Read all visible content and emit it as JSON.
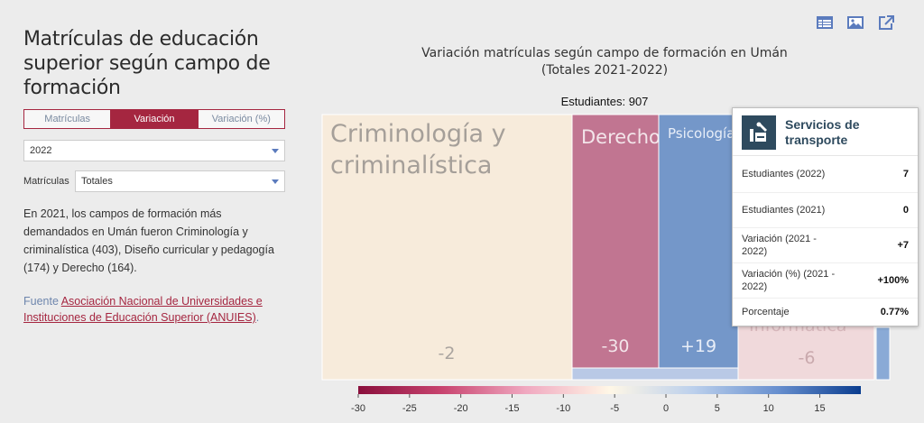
{
  "left": {
    "title": "Matrículas de educación superior según campo de formación",
    "tabs": [
      "Matrículas",
      "Variación",
      "Variación (%)"
    ],
    "active_tab": 1,
    "year_select": "2022",
    "matriculas_label": "Matrículas",
    "matriculas_select": "Totales",
    "description": "En 2021, los campos de formación más demandados en Umán fueron Criminología y criminalística (403), Diseño curricular y pedagogía (174) y Derecho (164).",
    "source_label": "Fuente",
    "source_link": "Asociación Nacional de Universidades e Instituciones de Educación Superior (ANUIES)",
    "source_end": "."
  },
  "toolbar_icons": [
    "table-icon",
    "image-icon",
    "external-link-icon"
  ],
  "chart_data": {
    "type": "treemap",
    "title_line1": "Variación matrículas según campo de formación en Umán",
    "title_line2": "(Totales 2021-2022)",
    "total_label": "Estudiantes: 907",
    "nodes": [
      {
        "name": "Criminología y criminalística",
        "value_label": "-2",
        "variation": -2,
        "color": "#f7ebdb"
      },
      {
        "name": "Derecho",
        "value_label": "-30",
        "variation": -30,
        "color": "#c17591"
      },
      {
        "name": "Psicología",
        "value_label": "+19",
        "variation": 19,
        "color": "#7497c9"
      },
      {
        "name": "Informática",
        "value_label": "-6",
        "variation": -6,
        "color": "#f0d9db"
      },
      {
        "name": "",
        "value_label": "",
        "variation": 8,
        "color": "#b9c9e6"
      },
      {
        "name": "Servicios de transporte",
        "value_label": "",
        "variation": 7,
        "color": "#8aaad6"
      }
    ],
    "colorscale": {
      "min": -30,
      "max": 19,
      "ticks": [
        -30,
        -25,
        -20,
        -15,
        -10,
        -5,
        0,
        5,
        10,
        15
      ],
      "colors": [
        "#8a0f3c",
        "#c8446f",
        "#f0a8c0",
        "#fff7e6",
        "#bcd0ec",
        "#6890cf",
        "#0a3d8f"
      ]
    },
    "tooltip": {
      "title": "Servicios de transporte",
      "rows": [
        {
          "label": "Estudiantes (2022)",
          "value": "7"
        },
        {
          "label": "Estudiantes (2021)",
          "value": "0"
        },
        {
          "label": "Variación (2021 - 2022)",
          "value": "+7"
        },
        {
          "label": "Variación (%) (2021 - 2022)",
          "value": "+100%"
        },
        {
          "label": "Porcentaje",
          "value": "0.77%"
        }
      ]
    }
  }
}
